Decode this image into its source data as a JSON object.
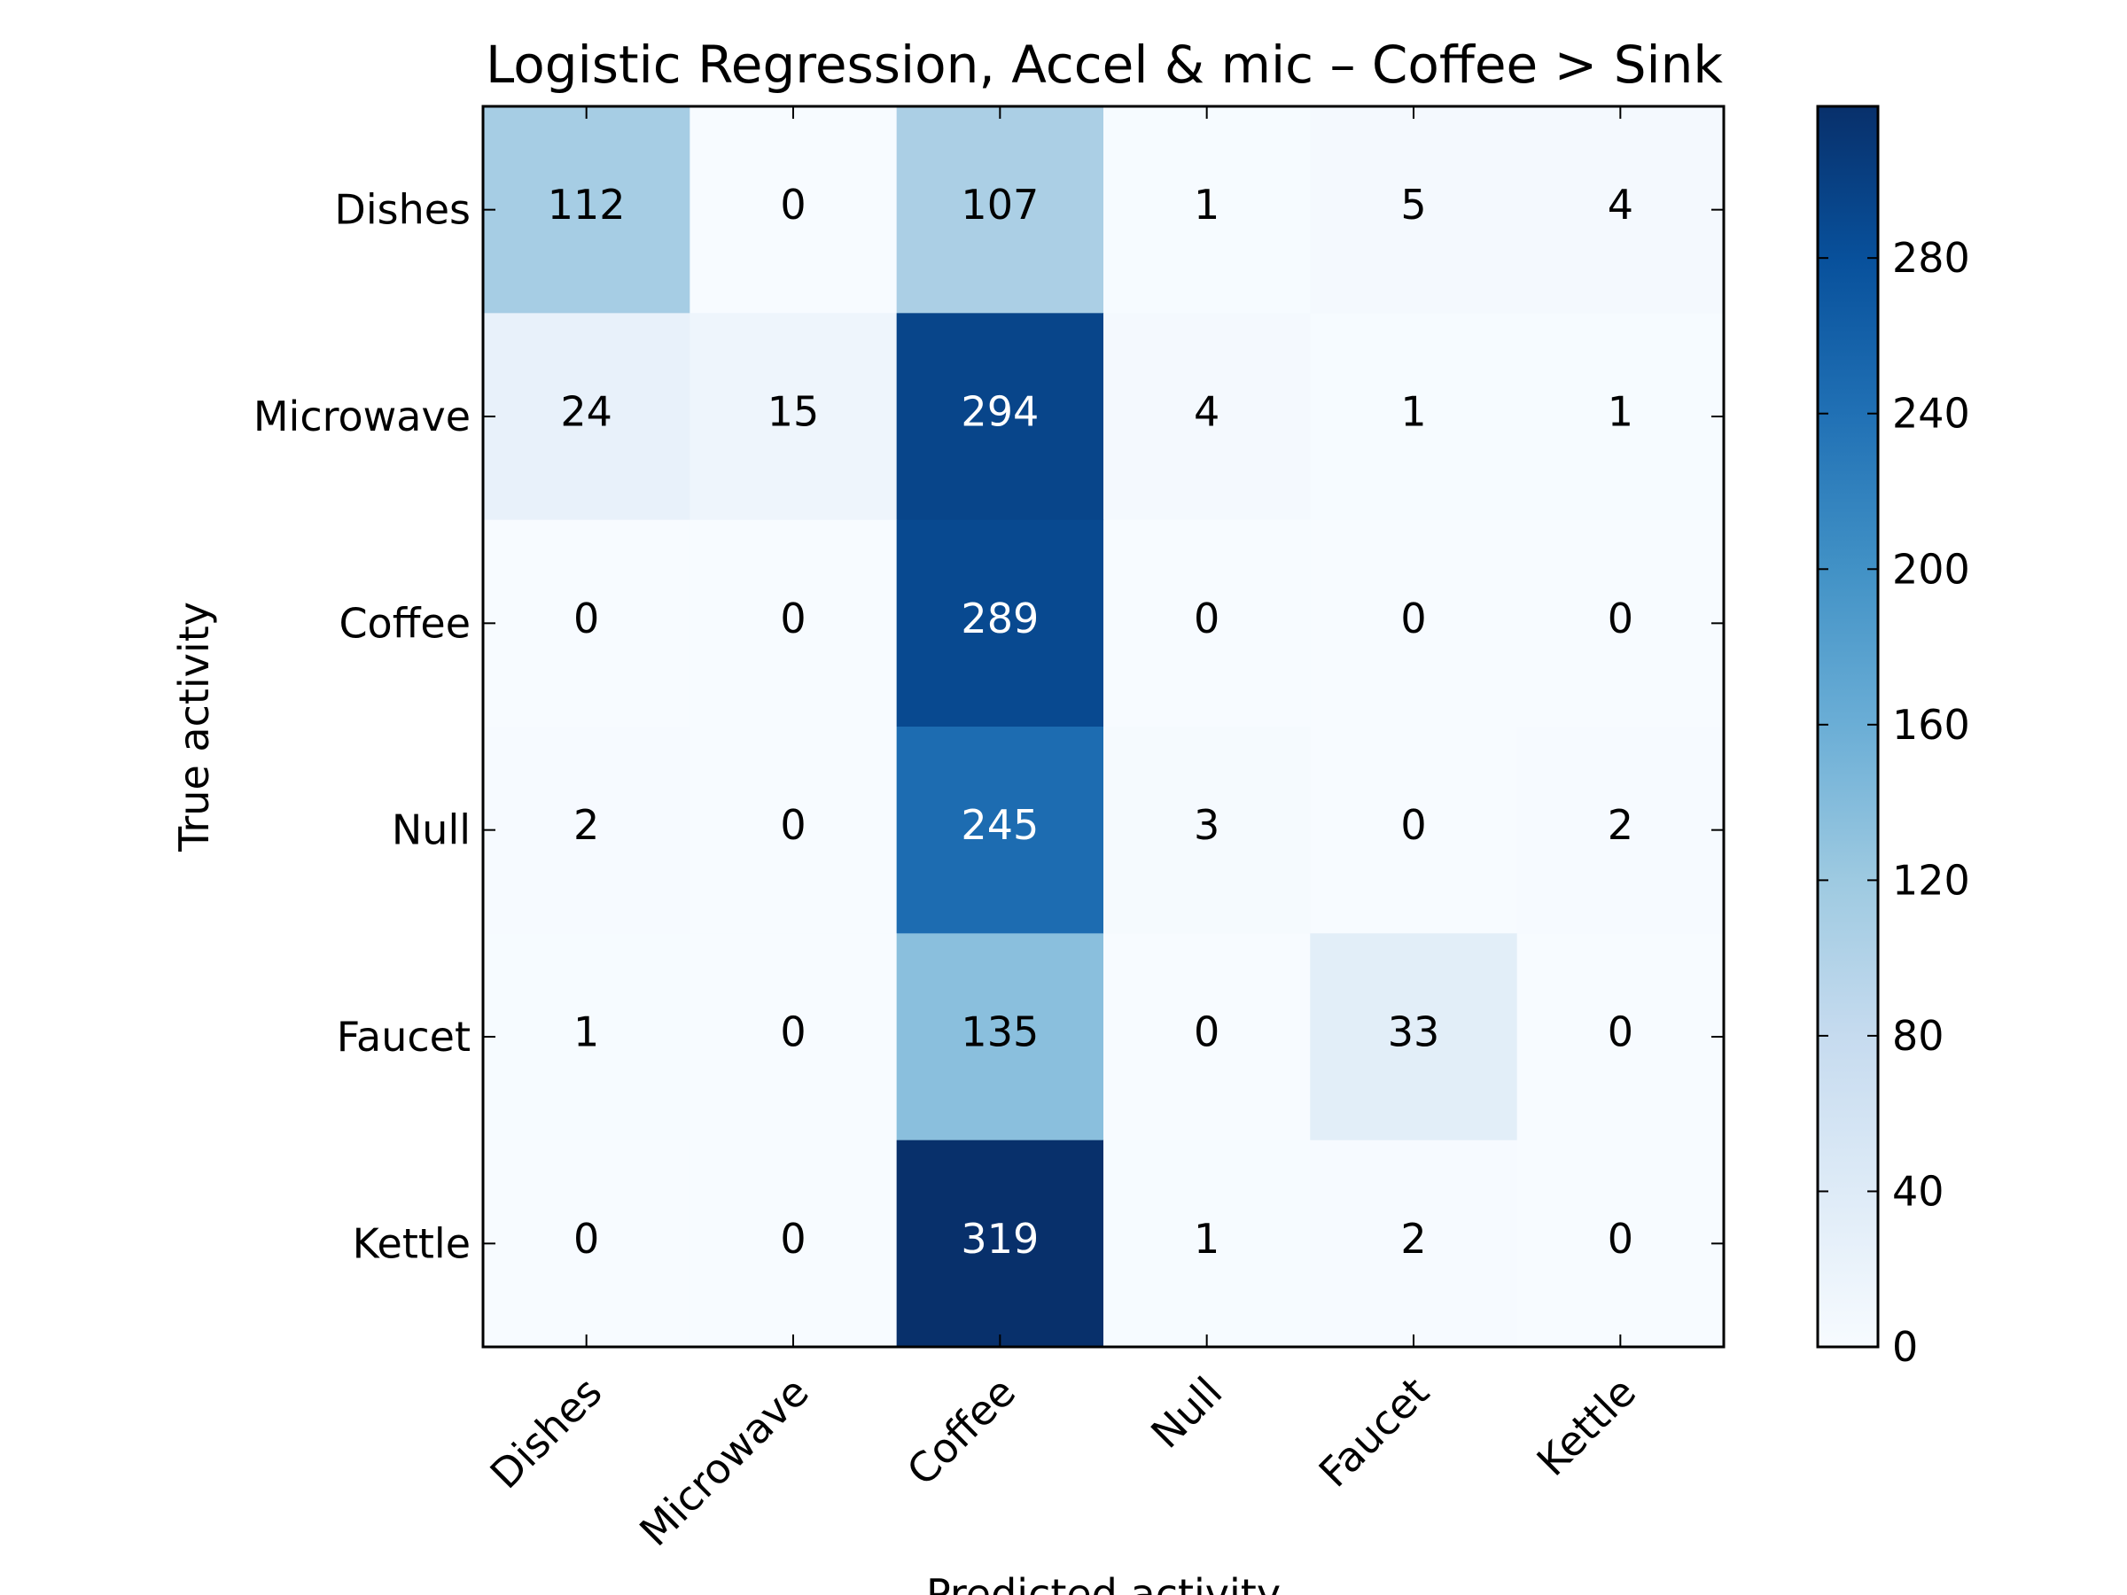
{
  "chart_data": {
    "type": "heatmap",
    "title": "Logistic Regression, Accel & mic – Coffee > Sink",
    "xlabel": "Predicted activity",
    "ylabel": "True activity",
    "x_categories": [
      "Dishes",
      "Microwave",
      "Coffee",
      "Null",
      "Faucet",
      "Kettle"
    ],
    "y_categories": [
      "Dishes",
      "Microwave",
      "Coffee",
      "Null",
      "Faucet",
      "Kettle"
    ],
    "values": [
      [
        112,
        0,
        107,
        1,
        5,
        4
      ],
      [
        24,
        15,
        294,
        4,
        1,
        1
      ],
      [
        0,
        0,
        289,
        0,
        0,
        0
      ],
      [
        2,
        0,
        245,
        3,
        0,
        2
      ],
      [
        1,
        0,
        135,
        0,
        33,
        0
      ],
      [
        0,
        0,
        319,
        1,
        2,
        0
      ]
    ],
    "colorbar": {
      "colormap": "Blues",
      "min": 0,
      "max": 319,
      "ticks": [
        0,
        40,
        80,
        120,
        160,
        200,
        240,
        280
      ]
    },
    "text_color_dark": "#000000",
    "text_color_light": "#ffffff"
  }
}
